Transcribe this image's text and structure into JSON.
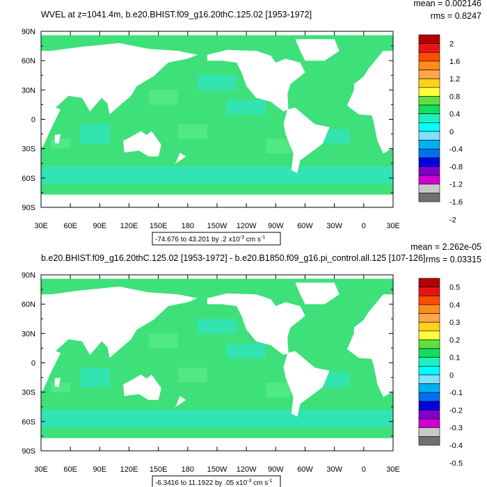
{
  "panels": [
    {
      "title": "WVEL at z=1041.4m, b.e20.BHIST.f09_g16.20thC.125.02 [1953-1972]",
      "mean": "mean = 0.002146",
      "rms": "rms = 0.8247",
      "range": "-74.676 to 43.201 by .2 x10",
      "range_exp": "-3",
      "range_units": " cm s",
      "range_units_exp": "-1",
      "colorbar": [
        "2",
        "1.6",
        "1.2",
        "0.8",
        "0.4",
        "0",
        "-0.4",
        "-0.8",
        "-1.2",
        "-1.6",
        "-2"
      ]
    },
    {
      "title": "b.e20.BHIST.f09_g16.20thC.125.02 [1953-1972] - b.e20.B1850.f09_g16.pi_control.all.125 [107-126]",
      "mean": "mean = 2.262e-05",
      "rms": "rms = 0.03315",
      "range": "-6.3416 to 11.1922 by .05 x10",
      "range_exp": "-3",
      "range_units": " cm s",
      "range_units_exp": "-1",
      "colorbar": [
        "0.5",
        "0.4",
        "0.3",
        "0.2",
        "0.1",
        "0",
        "-0.1",
        "-0.2",
        "-0.3",
        "-0.4",
        "-0.5"
      ]
    }
  ],
  "lat_labels": [
    "90N",
    "60N",
    "30N",
    "0",
    "30S",
    "60S",
    "90S"
  ],
  "lon_labels": [
    "30E",
    "60E",
    "90E",
    "120E",
    "150E",
    "180",
    "150W",
    "120W",
    "90W",
    "60W",
    "30W",
    "0",
    "30E"
  ],
  "colorbar_colors": [
    "#b40000",
    "#e81414",
    "#ff4d00",
    "#ff8c1a",
    "#ffa64d",
    "#ffd21a",
    "#ffff40",
    "#60e040",
    "#10e060",
    "#20f0c0",
    "#00ffff",
    "#80e0ff",
    "#00b0f0",
    "#0070f0",
    "#0000e0",
    "#8000d0",
    "#d000d0",
    "#c8c8c8",
    "#707070"
  ],
  "colors": {
    "background": "#ffffff",
    "field": "#3ee07a",
    "land": "#ffffff",
    "patch_cyan": "#2fe6c8",
    "patch_light": "#58ec8a",
    "edge": "#000000"
  }
}
